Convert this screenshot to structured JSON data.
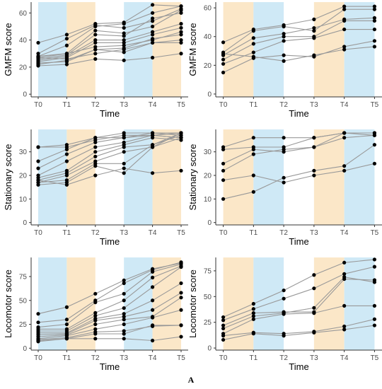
{
  "figure_label": "A",
  "colors": {
    "blue_band": "#cfe9f6",
    "orange_band": "#fbe7c8",
    "line": "#999999",
    "point": "#000000",
    "axis": "#333333"
  },
  "chart_data": [
    {
      "id": "gmfm-left",
      "type": "line",
      "xlabel": "Time",
      "ylabel": "GMFM score",
      "categories": [
        "T0",
        "T1",
        "T2",
        "T3",
        "T4",
        "T5"
      ],
      "ylim": [
        -2,
        68
      ],
      "yticks": [
        0,
        20,
        40,
        60
      ],
      "bands": [
        "blue",
        "orange",
        "none",
        "blue",
        "orange"
      ],
      "series": [
        {
          "values": [
            38,
            44,
            52,
            53,
            66,
            65
          ]
        },
        {
          "values": [
            30,
            41,
            51,
            49,
            54,
            63
          ]
        },
        {
          "values": [
            28,
            36,
            50,
            52,
            60,
            65
          ]
        },
        {
          "values": [
            27,
            30,
            47,
            45,
            50,
            62
          ]
        },
        {
          "values": [
            26,
            29,
            44,
            43,
            56,
            60
          ]
        },
        {
          "values": [
            25,
            28,
            40,
            40,
            46,
            52
          ]
        },
        {
          "values": [
            24,
            27,
            38,
            38,
            44,
            49
          ]
        },
        {
          "values": [
            28,
            30,
            35,
            36,
            40,
            46
          ]
        },
        {
          "values": [
            22,
            25,
            33,
            34,
            41,
            44
          ]
        },
        {
          "values": [
            23,
            24,
            33,
            31,
            38,
            40
          ]
        },
        {
          "values": [
            27,
            26,
            30,
            33,
            38,
            38
          ]
        },
        {
          "values": [
            21,
            22,
            26,
            25,
            27,
            30
          ]
        }
      ]
    },
    {
      "id": "gmfm-right",
      "type": "line",
      "xlabel": "Time",
      "ylabel": "GMFM score",
      "categories": [
        "T0",
        "T1",
        "T2",
        "T3",
        "T4",
        "T5"
      ],
      "ylim": [
        -2,
        64
      ],
      "yticks": [
        0,
        20,
        40,
        60
      ],
      "bands": [
        "orange",
        "blue",
        "none",
        "orange",
        "blue"
      ],
      "series": [
        {
          "values": [
            36,
            45,
            48,
            52,
            61,
            61
          ]
        },
        {
          "values": [
            29,
            44,
            47,
            44,
            59,
            59
          ]
        },
        {
          "values": [
            27,
            39,
            42,
            46,
            52,
            53
          ]
        },
        {
          "values": [
            24,
            35,
            40,
            40,
            51,
            51
          ]
        },
        {
          "values": [
            21,
            29,
            37,
            39,
            45,
            45
          ]
        },
        {
          "values": [
            15,
            25,
            27,
            26,
            33,
            37
          ]
        },
        {
          "values": [
            28,
            26,
            23,
            27,
            31,
            33
          ]
        }
      ]
    },
    {
      "id": "stationary-left",
      "type": "line",
      "xlabel": "Time",
      "ylabel": "Stationary score",
      "categories": [
        "T0",
        "T1",
        "T2",
        "T3",
        "T4",
        "T5"
      ],
      "ylim": [
        -1,
        39.5
      ],
      "yticks": [
        0,
        10,
        20,
        30
      ],
      "bands": [
        "blue",
        "orange",
        "none",
        "blue",
        "orange"
      ],
      "series": [
        {
          "values": [
            32,
            33,
            36,
            38,
            38,
            38
          ]
        },
        {
          "values": [
            32,
            32,
            35,
            37,
            37,
            38
          ]
        },
        {
          "values": [
            26,
            31,
            36,
            36,
            38,
            37
          ]
        },
        {
          "values": [
            23,
            29,
            34,
            36,
            37,
            36
          ]
        },
        {
          "values": [
            20,
            26,
            32,
            34,
            37,
            36
          ]
        },
        {
          "values": [
            19,
            22,
            30,
            33,
            36,
            35
          ]
        },
        {
          "values": [
            18,
            21,
            28,
            32,
            33,
            38
          ]
        },
        {
          "values": [
            17,
            20,
            26,
            30,
            32,
            36
          ]
        },
        {
          "values": [
            17,
            18,
            25,
            25,
            33,
            37
          ]
        },
        {
          "values": [
            16,
            17,
            24,
            21,
            32,
            38
          ]
        },
        {
          "values": [
            18,
            16,
            20,
            23,
            21,
            22
          ]
        }
      ]
    },
    {
      "id": "stationary-right",
      "type": "line",
      "xlabel": "Time",
      "ylabel": "Stationary score",
      "categories": [
        "T0",
        "T1",
        "T2",
        "T3",
        "T4",
        "T5"
      ],
      "ylim": [
        -1,
        39.5
      ],
      "yticks": [
        0,
        10,
        20,
        30
      ],
      "bands": [
        "orange",
        "blue",
        "none",
        "orange",
        "blue"
      ],
      "series": [
        {
          "values": [
            32,
            36,
            36,
            36,
            38,
            38
          ]
        },
        {
          "values": [
            31,
            32,
            32,
            36,
            38,
            37
          ]
        },
        {
          "values": [
            25,
            31,
            30,
            32,
            38,
            38
          ]
        },
        {
          "values": [
            22,
            29,
            31,
            32,
            36,
            37
          ]
        },
        {
          "values": [
            18,
            20,
            17,
            20,
            22,
            25
          ]
        },
        {
          "values": [
            10,
            13,
            19,
            22,
            24,
            33
          ]
        }
      ]
    },
    {
      "id": "locomotor-left",
      "type": "line",
      "xlabel": "Time",
      "ylabel": "Locomotor score",
      "categories": [
        "T0",
        "T1",
        "T2",
        "T3",
        "T4",
        "T5"
      ],
      "ylim": [
        -2,
        95
      ],
      "yticks": [
        0,
        25,
        50,
        75
      ],
      "bands": [
        "blue",
        "orange",
        "none",
        "blue",
        "orange"
      ],
      "series": [
        {
          "values": [
            36,
            43,
            57,
            71,
            83,
            89
          ]
        },
        {
          "values": [
            27,
            30,
            50,
            68,
            82,
            90
          ]
        },
        {
          "values": [
            22,
            25,
            48,
            57,
            80,
            88
          ]
        },
        {
          "values": [
            20,
            20,
            37,
            50,
            74,
            86
          ]
        },
        {
          "values": [
            18,
            18,
            34,
            42,
            64,
            85
          ]
        },
        {
          "values": [
            16,
            16,
            31,
            36,
            50,
            68
          ]
        },
        {
          "values": [
            14,
            15,
            29,
            33,
            40,
            58
          ]
        },
        {
          "values": [
            12,
            14,
            25,
            30,
            33,
            53
          ]
        },
        {
          "values": [
            10,
            13,
            20,
            25,
            32,
            40
          ]
        },
        {
          "values": [
            9,
            11,
            17,
            18,
            23,
            24
          ]
        },
        {
          "values": [
            8,
            10,
            15,
            15,
            24,
            24
          ]
        },
        {
          "values": [
            7,
            10,
            10,
            10,
            8,
            12
          ]
        }
      ]
    },
    {
      "id": "locomotor-right",
      "type": "line",
      "xlabel": "Time",
      "ylabel": "Locomotor score",
      "categories": [
        "T0",
        "T1",
        "T2",
        "T3",
        "T4",
        "T5"
      ],
      "ylim": [
        -2,
        88
      ],
      "yticks": [
        0,
        25,
        50,
        75
      ],
      "bands": [
        "orange",
        "blue",
        "none",
        "orange",
        "blue"
      ],
      "series": [
        {
          "values": [
            30,
            43,
            56,
            71,
            83,
            86
          ]
        },
        {
          "values": [
            27,
            38,
            48,
            58,
            72,
            79
          ]
        },
        {
          "values": [
            22,
            34,
            35,
            35,
            67,
            66
          ]
        },
        {
          "values": [
            19,
            31,
            34,
            39,
            69,
            64
          ]
        },
        {
          "values": [
            14,
            28,
            33,
            34,
            41,
            41
          ]
        },
        {
          "values": [
            12,
            15,
            14,
            16,
            21,
            28
          ]
        },
        {
          "values": [
            8,
            14,
            12,
            15,
            18,
            22
          ]
        }
      ]
    }
  ]
}
